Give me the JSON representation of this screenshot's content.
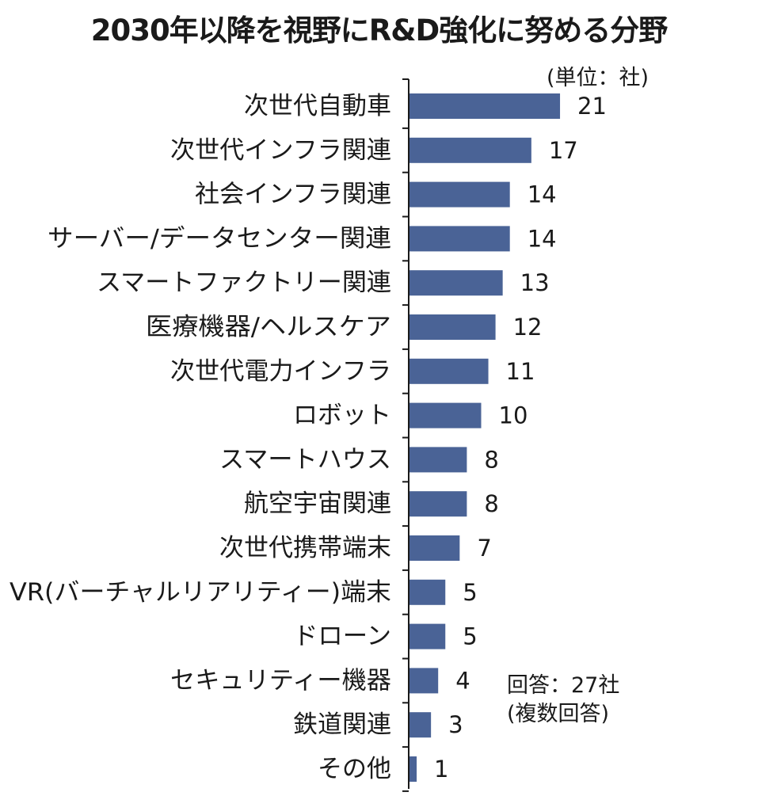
{
  "chart_data": {
    "type": "bar",
    "orientation": "horizontal",
    "title": "2030年以降を視野にR&D強化に努める分野",
    "unit_label": "(単位：社)",
    "note_lines": [
      "回答：27社",
      "(複数回答)"
    ],
    "bar_color": "#4a6396",
    "xlim": [
      0,
      21
    ],
    "categories": [
      "次世代自動車",
      "次世代インフラ関連",
      "社会インフラ関連",
      "サーバー/データセンター関連",
      "スマートファクトリー関連",
      "医療機器/ヘルスケア",
      "次世代電力インフラ",
      "ロボット",
      "スマートハウス",
      "航空宇宙関連",
      "次世代携帯端末",
      "VR(バーチャルリアリティー)端末",
      "ドローン",
      "セキュリティー機器",
      "鉄道関連",
      "その他"
    ],
    "values": [
      21,
      17,
      14,
      14,
      13,
      12,
      11,
      10,
      8,
      8,
      7,
      5,
      5,
      4,
      3,
      1
    ]
  }
}
